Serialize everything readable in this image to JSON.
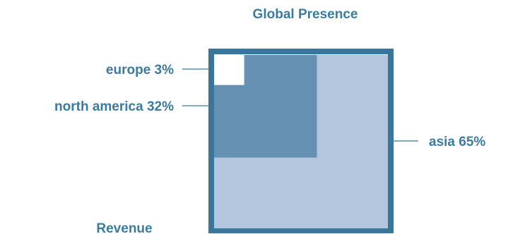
{
  "chart_data": {
    "type": "area",
    "title": "Global Presence",
    "subtitle": "Revenue",
    "series": [
      {
        "name": "europe",
        "value": 3,
        "label": "europe 3%",
        "color": "#ffffff"
      },
      {
        "name": "north america",
        "value": 32,
        "label": "north america 32%",
        "color": "#6590b2"
      },
      {
        "name": "asia",
        "value": 65,
        "label": "asia 65%",
        "color": "#b3c6dd"
      }
    ],
    "frame_color": "#3a7699",
    "text_color": "#3a7ba0"
  }
}
